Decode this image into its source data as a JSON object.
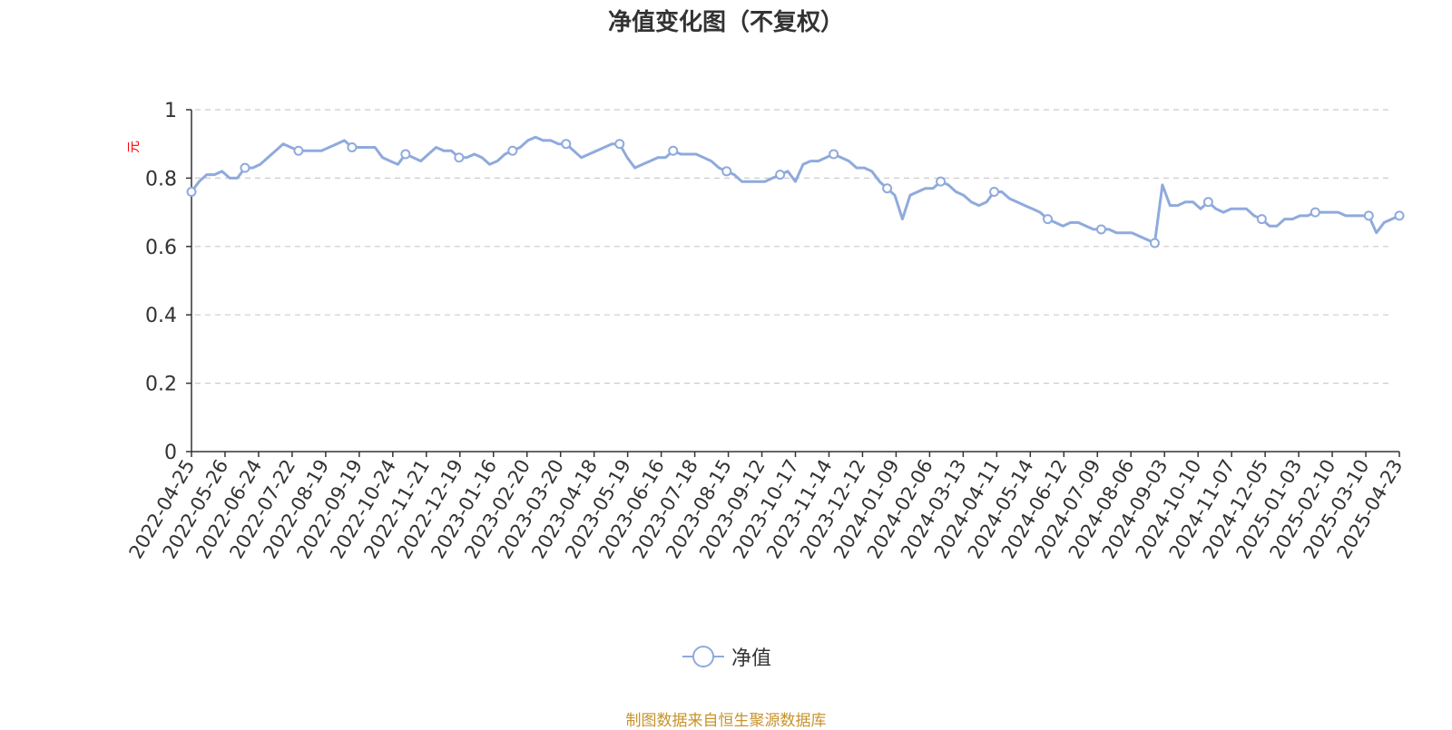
{
  "chart_data": {
    "type": "line",
    "title": "净值变化图（不复权）",
    "ylabel": "元",
    "ylim": [
      0,
      1
    ],
    "y_ticks": [
      "0",
      "0.2",
      "0.4",
      "0.6",
      "0.8",
      "1"
    ],
    "grid": true,
    "legend": {
      "position": "bottom-center"
    },
    "x_tick_labels": [
      "2022-04-25",
      "2022-05-26",
      "2022-06-24",
      "2022-07-22",
      "2022-08-19",
      "2022-09-19",
      "2022-10-24",
      "2022-11-21",
      "2022-12-19",
      "2023-01-16",
      "2023-02-20",
      "2023-03-20",
      "2023-04-18",
      "2023-05-19",
      "2023-06-16",
      "2023-07-18",
      "2023-08-15",
      "2023-09-12",
      "2023-10-17",
      "2023-11-14",
      "2023-12-12",
      "2024-01-09",
      "2024-02-06",
      "2024-03-13",
      "2024-04-11",
      "2024-05-14",
      "2024-06-12",
      "2024-07-09",
      "2024-08-06",
      "2024-09-03",
      "2024-10-10",
      "2024-11-07",
      "2024-12-05",
      "2025-01-03",
      "2025-02-10",
      "2025-03-10",
      "2025-04-23"
    ],
    "series": [
      {
        "name": "净值",
        "color": "#8faadc",
        "values": [
          0.76,
          0.79,
          0.81,
          0.81,
          0.82,
          0.8,
          0.8,
          0.83,
          0.83,
          0.84,
          0.86,
          0.88,
          0.9,
          0.89,
          0.88,
          0.88,
          0.88,
          0.88,
          0.89,
          0.9,
          0.91,
          0.89,
          0.89,
          0.89,
          0.89,
          0.86,
          0.85,
          0.84,
          0.87,
          0.86,
          0.85,
          0.87,
          0.89,
          0.88,
          0.88,
          0.86,
          0.86,
          0.87,
          0.86,
          0.84,
          0.85,
          0.87,
          0.88,
          0.89,
          0.91,
          0.92,
          0.91,
          0.91,
          0.9,
          0.9,
          0.88,
          0.86,
          0.87,
          0.88,
          0.89,
          0.9,
          0.9,
          0.86,
          0.83,
          0.84,
          0.85,
          0.86,
          0.86,
          0.88,
          0.87,
          0.87,
          0.87,
          0.86,
          0.85,
          0.83,
          0.82,
          0.81,
          0.79,
          0.79,
          0.79,
          0.79,
          0.8,
          0.81,
          0.82,
          0.79,
          0.84,
          0.85,
          0.85,
          0.86,
          0.87,
          0.86,
          0.85,
          0.83,
          0.83,
          0.82,
          0.79,
          0.77,
          0.75,
          0.68,
          0.75,
          0.76,
          0.77,
          0.77,
          0.79,
          0.78,
          0.76,
          0.75,
          0.73,
          0.72,
          0.73,
          0.76,
          0.76,
          0.74,
          0.73,
          0.72,
          0.71,
          0.7,
          0.68,
          0.67,
          0.66,
          0.67,
          0.67,
          0.66,
          0.65,
          0.65,
          0.65,
          0.64,
          0.64,
          0.64,
          0.63,
          0.62,
          0.61,
          0.78,
          0.72,
          0.72,
          0.73,
          0.73,
          0.71,
          0.73,
          0.71,
          0.7,
          0.71,
          0.71,
          0.71,
          0.69,
          0.68,
          0.66,
          0.66,
          0.68,
          0.68,
          0.69,
          0.69,
          0.7,
          0.7,
          0.7,
          0.7,
          0.69,
          0.69,
          0.69,
          0.69,
          0.64,
          0.67,
          0.68,
          0.69
        ]
      }
    ],
    "markers_every": 7
  },
  "legend_label": "净值",
  "source_note": "制图数据来自恒生聚源数据库"
}
